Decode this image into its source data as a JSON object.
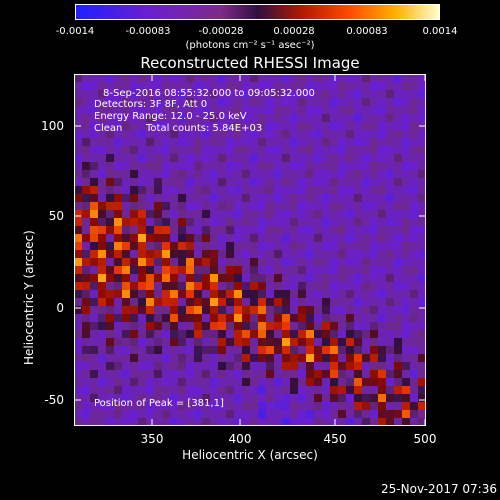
{
  "colorbar": {
    "ticks": [
      "-0.0014",
      "-0.00083",
      "-0.00028",
      "0.00028",
      "0.00083",
      "0.0014"
    ],
    "units": "(photons cm⁻² s⁻¹ asec⁻²)"
  },
  "chart_data": {
    "type": "heatmap",
    "title": "Reconstructed RHESSI Image",
    "xlabel": "Heliocentric X (arcsec)",
    "ylabel": "Heliocentric Y (arcsec)",
    "xlim": [
      308,
      500
    ],
    "ylim": [
      -62,
      128
    ],
    "xticks": [
      "350",
      "400",
      "450",
      "500"
    ],
    "yticks": [
      "100",
      "50",
      "0",
      "-50"
    ],
    "zlim": [
      -0.0014,
      0.0014
    ],
    "peak": {
      "x": 381,
      "y": 1
    },
    "colormap": "red-temperature with blue negatives"
  },
  "info": {
    "time": "8-Sep-2016 08:55:32.000 to 09:05:32.000",
    "detectors": "Detectors: 3F 8F, Att 0",
    "energy": "Energy Range: 12.0 - 25.0 keV",
    "method": "Clean",
    "counts": "Total counts: 5.84E+03",
    "peak": "Position of Peak = [381,1]"
  },
  "footer": "25-Nov-2017 07:36"
}
